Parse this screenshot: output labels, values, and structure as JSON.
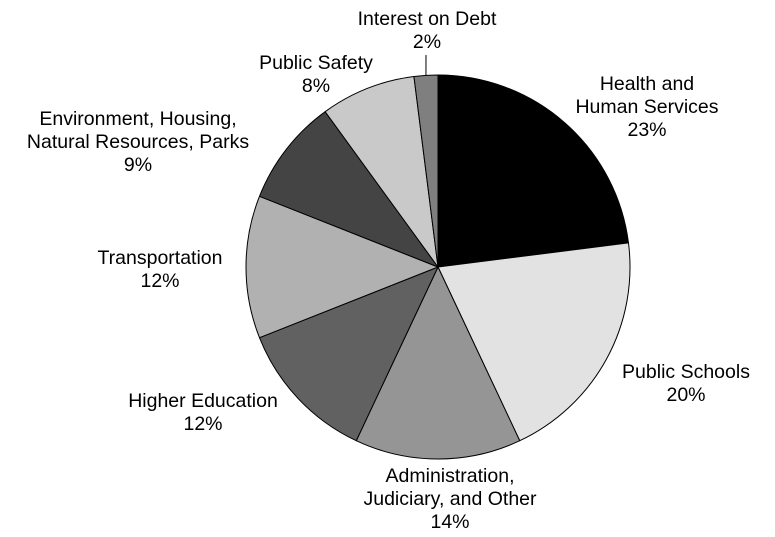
{
  "chart_data": {
    "type": "pie",
    "start_angle": "12 o'clock",
    "direction": "clockwise",
    "slices": [
      {
        "label_lines": [
          "Health and",
          "Human Services"
        ],
        "percent_label": "23%",
        "value": 23,
        "color": "#000000"
      },
      {
        "label_lines": [
          "Public Schools"
        ],
        "percent_label": "20%",
        "value": 20,
        "color": "#e2e2e2"
      },
      {
        "label_lines": [
          "Administration,",
          "Judiciary, and Other"
        ],
        "percent_label": "14%",
        "value": 14,
        "color": "#959595"
      },
      {
        "label_lines": [
          "Higher Education"
        ],
        "percent_label": "12%",
        "value": 12,
        "color": "#616161"
      },
      {
        "label_lines": [
          "Transportation"
        ],
        "percent_label": "12%",
        "value": 12,
        "color": "#b1b1b1"
      },
      {
        "label_lines": [
          "Environment, Housing,",
          "Natural Resources, Parks"
        ],
        "percent_label": "9%",
        "value": 9,
        "color": "#444444"
      },
      {
        "label_lines": [
          "Public Safety"
        ],
        "percent_label": "8%",
        "value": 8,
        "color": "#c9c9c9"
      },
      {
        "label_lines": [
          "Interest on Debt"
        ],
        "percent_label": "2%",
        "value": 2,
        "color": "#7f7f7f"
      }
    ]
  }
}
